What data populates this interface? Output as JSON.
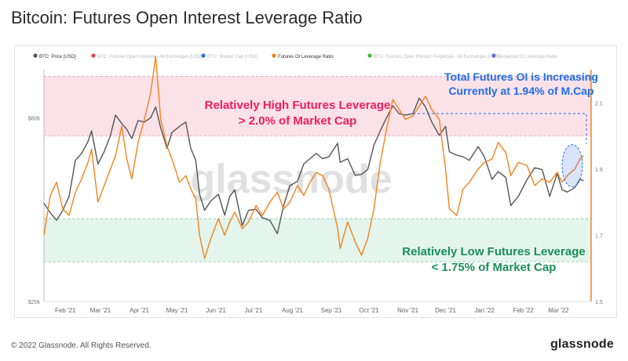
{
  "page": {
    "title": "Bitcoin: Futures Open Interest Leverage Ratio",
    "copyright": "© 2022 Glassnode. All Rights Reserved.",
    "brand": "glassnode",
    "watermark": "glassnode"
  },
  "colors": {
    "price": "#555555",
    "leverage": "#f7821b",
    "high_zone": "#fbe1e8",
    "low_zone": "#e3f5ec",
    "high_text": "#ee1d63",
    "low_text": "#1b8f5a",
    "blue_text": "#1f6ee8"
  },
  "chart_data": {
    "type": "line",
    "legend": [
      {
        "name": "BTC: Price [USD]",
        "color": "#555555",
        "active": true
      },
      {
        "name": "BTC: Futures Open Interest - All Exchanges [USD]",
        "color": "#e0404a",
        "active": false
      },
      {
        "name": "BTC: Market Cap [USD]",
        "color": "#2a6cf0",
        "active": false
      },
      {
        "name": "Futures OI Leverage Ratio",
        "color": "#f7821b",
        "active": true
      },
      {
        "name": "BTC: Futures Open Interest Perpetual - All Exchanges [USD]",
        "color": "#3dbb3d",
        "active": false
      },
      {
        "name": "Perpetual OI Leverage Ratio",
        "color": "#5a6fd6",
        "active": false
      }
    ],
    "x_ticks": [
      "Feb '21",
      "Mar '21",
      "Apr '21",
      "May '21",
      "Jun '21",
      "Jul '21",
      "Aug '21",
      "Sep '21",
      "Oct '21",
      "Nov '21",
      "Dec '21",
      "Jan '22",
      "Feb '22",
      "Mar '22"
    ],
    "y_left": {
      "scale": "log",
      "ticks": [
        "$20k",
        "$60k"
      ],
      "range": [
        20000,
        80000
      ]
    },
    "y_right": {
      "ticks": [
        "1.5",
        "1.7",
        "1.9",
        "2.1"
      ],
      "range": [
        1.5,
        2.2
      ]
    },
    "zones": [
      {
        "label": "high",
        "from": 2.0,
        "to": 2.18
      },
      {
        "label": "low",
        "from": 1.62,
        "to": 1.75
      }
    ],
    "annotations": {
      "high": [
        "Relatively High Futures Leverage",
        "> 2.0% of Market Cap"
      ],
      "low": [
        "Relatively Low Futures Leverage",
        "< 1.75% of Market Cap"
      ],
      "current": [
        "Total Futures OI is Increasing",
        "Currently at 1.94% of M.Cap"
      ]
    },
    "series": [
      {
        "name": "BTC: Price [USD]",
        "axis": "left",
        "points": [
          [
            "2021-01-15",
            36000
          ],
          [
            "2021-01-20",
            34000
          ],
          [
            "2021-01-25",
            32500
          ],
          [
            "2021-01-30",
            34500
          ],
          [
            "2021-02-04",
            37500
          ],
          [
            "2021-02-09",
            46500
          ],
          [
            "2021-02-14",
            48500
          ],
          [
            "2021-02-19",
            52000
          ],
          [
            "2021-02-22",
            55500
          ],
          [
            "2021-02-27",
            45500
          ],
          [
            "2021-03-04",
            49000
          ],
          [
            "2021-03-09",
            54000
          ],
          [
            "2021-03-13",
            61000
          ],
          [
            "2021-03-18",
            58000
          ],
          [
            "2021-03-22",
            56000
          ],
          [
            "2021-03-26",
            53000
          ],
          [
            "2021-03-31",
            59000
          ],
          [
            "2021-04-05",
            58500
          ],
          [
            "2021-04-10",
            60000
          ],
          [
            "2021-04-14",
            64000
          ],
          [
            "2021-04-18",
            56500
          ],
          [
            "2021-04-23",
            50000
          ],
          [
            "2021-04-27",
            55000
          ],
          [
            "2021-05-03",
            57000
          ],
          [
            "2021-05-08",
            58500
          ],
          [
            "2021-05-12",
            50000
          ],
          [
            "2021-05-16",
            46500
          ],
          [
            "2021-05-19",
            38000
          ],
          [
            "2021-05-23",
            34500
          ],
          [
            "2021-05-28",
            36500
          ],
          [
            "2021-06-03",
            38000
          ],
          [
            "2021-06-08",
            33500
          ],
          [
            "2021-06-12",
            37500
          ],
          [
            "2021-06-16",
            39000
          ],
          [
            "2021-06-22",
            31500
          ],
          [
            "2021-06-27",
            34500
          ],
          [
            "2021-07-03",
            34700
          ],
          [
            "2021-07-08",
            33000
          ],
          [
            "2021-07-14",
            32500
          ],
          [
            "2021-07-20",
            30000
          ],
          [
            "2021-07-25",
            35500
          ],
          [
            "2021-07-30",
            40000
          ],
          [
            "2021-08-05",
            41000
          ],
          [
            "2021-08-10",
            45500
          ],
          [
            "2021-08-15",
            47000
          ],
          [
            "2021-08-20",
            48500
          ],
          [
            "2021-08-25",
            47000
          ],
          [
            "2021-08-30",
            47500
          ],
          [
            "2021-09-06",
            51500
          ],
          [
            "2021-09-08",
            46000
          ],
          [
            "2021-09-14",
            47000
          ],
          [
            "2021-09-20",
            42500
          ],
          [
            "2021-09-25",
            42800
          ],
          [
            "2021-09-30",
            44000
          ],
          [
            "2021-10-05",
            51000
          ],
          [
            "2021-10-10",
            55500
          ],
          [
            "2021-10-15",
            60000
          ],
          [
            "2021-10-20",
            64500
          ],
          [
            "2021-10-25",
            61500
          ],
          [
            "2021-10-30",
            61000
          ],
          [
            "2021-11-05",
            61500
          ],
          [
            "2021-11-10",
            67500
          ],
          [
            "2021-11-15",
            64000
          ],
          [
            "2021-11-20",
            58500
          ],
          [
            "2021-11-26",
            54000
          ],
          [
            "2021-12-01",
            57000
          ],
          [
            "2021-12-04",
            49000
          ],
          [
            "2021-12-10",
            48000
          ],
          [
            "2021-12-15",
            47500
          ],
          [
            "2021-12-20",
            46500
          ],
          [
            "2021-12-27",
            50500
          ],
          [
            "2022-01-01",
            47500
          ],
          [
            "2022-01-07",
            41500
          ],
          [
            "2022-01-12",
            43500
          ],
          [
            "2022-01-18",
            42000
          ],
          [
            "2022-01-22",
            35500
          ],
          [
            "2022-01-28",
            37500
          ],
          [
            "2022-02-04",
            41500
          ],
          [
            "2022-02-10",
            44500
          ],
          [
            "2022-02-16",
            44000
          ],
          [
            "2022-02-22",
            37500
          ],
          [
            "2022-02-28",
            43000
          ],
          [
            "2022-03-04",
            39000
          ],
          [
            "2022-03-08",
            38500
          ],
          [
            "2022-03-14",
            39500
          ],
          [
            "2022-03-18",
            41500
          ],
          [
            "2022-03-21",
            41200
          ]
        ]
      },
      {
        "name": "Futures OI Leverage Ratio",
        "axis": "right",
        "points": [
          [
            "2021-01-15",
            1.7
          ],
          [
            "2021-01-20",
            1.82
          ],
          [
            "2021-01-25",
            1.86
          ],
          [
            "2021-01-30",
            1.78
          ],
          [
            "2021-02-04",
            1.76
          ],
          [
            "2021-02-09",
            1.83
          ],
          [
            "2021-02-14",
            1.87
          ],
          [
            "2021-02-19",
            1.92
          ],
          [
            "2021-02-22",
            1.96
          ],
          [
            "2021-02-27",
            1.8
          ],
          [
            "2021-03-04",
            1.85
          ],
          [
            "2021-03-09",
            1.9
          ],
          [
            "2021-03-13",
            1.94
          ],
          [
            "2021-03-18",
            2.03
          ],
          [
            "2021-03-22",
            1.93
          ],
          [
            "2021-03-26",
            1.87
          ],
          [
            "2021-03-31",
            1.98
          ],
          [
            "2021-04-05",
            2.05
          ],
          [
            "2021-04-10",
            2.13
          ],
          [
            "2021-04-14",
            2.24
          ],
          [
            "2021-04-18",
            2.05
          ],
          [
            "2021-04-23",
            1.97
          ],
          [
            "2021-04-27",
            1.93
          ],
          [
            "2021-05-03",
            1.86
          ],
          [
            "2021-05-08",
            1.88
          ],
          [
            "2021-05-12",
            1.84
          ],
          [
            "2021-05-16",
            1.81
          ],
          [
            "2021-05-19",
            1.7
          ],
          [
            "2021-05-23",
            1.63
          ],
          [
            "2021-05-28",
            1.69
          ],
          [
            "2021-06-03",
            1.75
          ],
          [
            "2021-06-08",
            1.7
          ],
          [
            "2021-06-12",
            1.74
          ],
          [
            "2021-06-16",
            1.77
          ],
          [
            "2021-06-22",
            1.72
          ],
          [
            "2021-06-27",
            1.74
          ],
          [
            "2021-07-03",
            1.79
          ],
          [
            "2021-07-08",
            1.76
          ],
          [
            "2021-07-14",
            1.8
          ],
          [
            "2021-07-20",
            1.83
          ],
          [
            "2021-07-25",
            1.78
          ],
          [
            "2021-07-30",
            1.8
          ],
          [
            "2021-08-05",
            1.85
          ],
          [
            "2021-08-10",
            1.82
          ],
          [
            "2021-08-15",
            1.86
          ],
          [
            "2021-08-20",
            1.89
          ],
          [
            "2021-08-25",
            1.88
          ],
          [
            "2021-08-30",
            1.84
          ],
          [
            "2021-09-06",
            1.72
          ],
          [
            "2021-09-08",
            1.66
          ],
          [
            "2021-09-14",
            1.74
          ],
          [
            "2021-09-20",
            1.68
          ],
          [
            "2021-09-25",
            1.64
          ],
          [
            "2021-09-30",
            1.69
          ],
          [
            "2021-10-05",
            1.78
          ],
          [
            "2021-10-10",
            1.92
          ],
          [
            "2021-10-15",
            2.02
          ],
          [
            "2021-10-20",
            2.11
          ],
          [
            "2021-10-25",
            2.08
          ],
          [
            "2021-10-30",
            2.05
          ],
          [
            "2021-11-05",
            2.06
          ],
          [
            "2021-11-10",
            2.09
          ],
          [
            "2021-11-15",
            2.12
          ],
          [
            "2021-11-20",
            2.08
          ],
          [
            "2021-11-26",
            2.05
          ],
          [
            "2021-12-01",
            1.9
          ],
          [
            "2021-12-04",
            1.78
          ],
          [
            "2021-12-10",
            1.76
          ],
          [
            "2021-12-15",
            1.84
          ],
          [
            "2021-12-20",
            1.86
          ],
          [
            "2021-12-27",
            1.9
          ],
          [
            "2022-01-01",
            1.92
          ],
          [
            "2022-01-07",
            1.93
          ],
          [
            "2022-01-12",
            1.98
          ],
          [
            "2022-01-18",
            1.95
          ],
          [
            "2022-01-22",
            1.88
          ],
          [
            "2022-01-28",
            1.92
          ],
          [
            "2022-02-04",
            1.91
          ],
          [
            "2022-02-10",
            1.85
          ],
          [
            "2022-02-16",
            1.87
          ],
          [
            "2022-02-22",
            1.86
          ],
          [
            "2022-02-28",
            1.89
          ],
          [
            "2022-03-04",
            1.86
          ],
          [
            "2022-03-08",
            1.88
          ],
          [
            "2022-03-14",
            1.9
          ],
          [
            "2022-03-18",
            1.93
          ],
          [
            "2022-03-21",
            1.94
          ]
        ]
      }
    ]
  }
}
